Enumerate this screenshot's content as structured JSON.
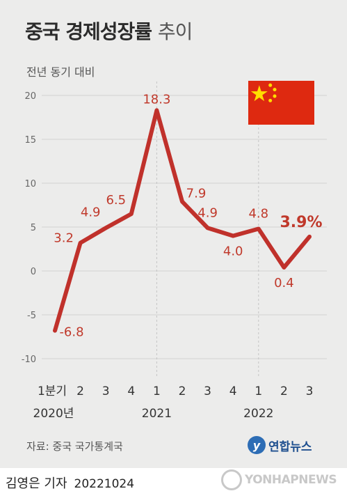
{
  "header": {
    "title_bold": "중국 경제성장률",
    "title_light": "추이",
    "subtitle": "전년 동기 대비"
  },
  "colors": {
    "background": "#ececeb",
    "line": "#c0312b",
    "label": "#c0392b",
    "grid": "#d2d2d2",
    "axis_text": "#333333",
    "flag_red": "#de2910",
    "flag_star": "#ffde00"
  },
  "chart_data": {
    "type": "line",
    "x_tick_labels": [
      "1분기",
      "2",
      "3",
      "4",
      "1",
      "2",
      "3",
      "4",
      "1",
      "2",
      "3"
    ],
    "x_group_labels": [
      {
        "label": "2020년",
        "tick_index": 0
      },
      {
        "label": "2021",
        "tick_index": 4
      },
      {
        "label": "2022",
        "tick_index": 8
      }
    ],
    "series": [
      {
        "values": [
          -6.8,
          3.2,
          4.9,
          6.5,
          18.3,
          7.9,
          4.9,
          4.0,
          4.8,
          0.4,
          3.9
        ],
        "labels": [
          "-6.8",
          "3.2",
          "4.9",
          "6.5",
          "18.3",
          "7.9",
          "4.9",
          "4.0",
          "4.8",
          "0.4",
          "3.9%"
        ]
      }
    ],
    "ylim": [
      -10,
      20
    ],
    "y_ticks": [
      -10,
      -5,
      0,
      5,
      10,
      15,
      20
    ],
    "grid": "horizontal",
    "year_dividers": true,
    "highlight_last": true
  },
  "flag_icon": "china-flag-icon",
  "footer": {
    "source": "자료: 중국 국가통계국",
    "agency": "연합뉴스",
    "byline": "김영은 기자",
    "date": "20221024",
    "watermark": "YONHAPNEWS"
  }
}
